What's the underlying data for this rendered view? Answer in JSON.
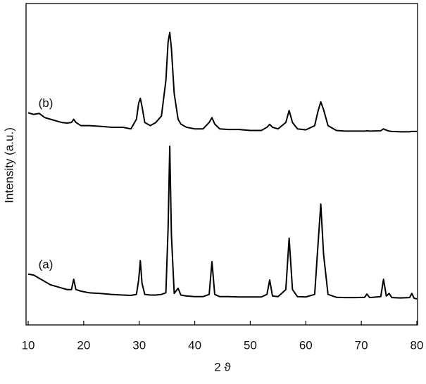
{
  "chart_data": {
    "type": "line",
    "xlabel": "2 ϑ",
    "ylabel": "Intensity (a.u.)",
    "x": [
      10,
      11,
      12,
      13,
      14,
      15,
      16,
      17,
      17.8,
      18.2,
      18.6,
      19.5,
      21,
      23,
      25,
      27,
      28.5,
      29.5,
      29.9,
      30.2,
      30.5,
      31,
      32,
      33,
      34,
      34.8,
      35.2,
      35.5,
      35.8,
      36.3,
      37,
      37.5,
      38.5,
      40,
      41.5,
      42.6,
      43.1,
      43.6,
      44.5,
      46,
      48,
      50,
      52,
      53,
      53.5,
      54,
      55,
      56.4,
      57,
      57.6,
      58.5,
      60,
      61.6,
      62.2,
      62.7,
      63.2,
      64,
      65.5,
      67,
      69,
      70.6,
      71,
      71.5,
      73.5,
      74,
      74.5,
      75,
      75.5,
      77,
      78.7,
      79.1,
      79.5,
      80
    ],
    "series": [
      {
        "name": "(b)",
        "color": "#000000",
        "values": [
          66,
          65.5,
          65.8,
          64.5,
          64,
          63.5,
          63,
          62.8,
          63,
          64,
          63,
          62,
          62,
          61.8,
          61.5,
          61.5,
          61,
          64,
          69,
          70.5,
          68,
          63,
          62,
          63,
          65,
          76,
          88,
          91,
          86,
          72,
          64,
          62.5,
          61.5,
          61,
          61,
          63,
          64.5,
          62.5,
          61,
          60.8,
          60.8,
          60.5,
          60.5,
          61.5,
          62.4,
          61.5,
          61,
          63,
          66.7,
          63,
          61,
          60.7,
          62,
          66.5,
          69.4,
          67,
          62,
          60.5,
          60.3,
          60.3,
          60.3,
          60.4,
          60.3,
          60.4,
          61,
          60.6,
          60.3,
          60.2,
          60.1,
          60.1,
          60.2,
          60.2,
          60.2
        ]
      },
      {
        "name": "(a)",
        "color": "#000000",
        "values": [
          15.8,
          15.5,
          14.5,
          13.5,
          12.5,
          12,
          11.5,
          11,
          11,
          14.2,
          11,
          10.5,
          10,
          9.8,
          9.5,
          9.3,
          9.2,
          9.5,
          14,
          20,
          13,
          9.5,
          9.3,
          9.3,
          9.5,
          10,
          30,
          55.6,
          28,
          9.8,
          11.4,
          9.3,
          9,
          8.8,
          8.8,
          9.5,
          19.7,
          9.5,
          8.8,
          8.8,
          8.7,
          8.7,
          8.7,
          9.5,
          14,
          9,
          8.8,
          11,
          27,
          11,
          8.8,
          8.7,
          9.5,
          25,
          37.6,
          22,
          9.5,
          8.6,
          8.5,
          8.5,
          8.6,
          9.6,
          8.5,
          8.8,
          14.2,
          9,
          9.8,
          8.5,
          8.4,
          8.5,
          9.8,
          8.3,
          8.1
        ]
      }
    ],
    "xlim": [
      10,
      80
    ],
    "xticks": [
      10,
      20,
      30,
      40,
      50,
      60,
      70,
      80
    ],
    "ylim": [
      0,
      100
    ],
    "grid": false
  }
}
